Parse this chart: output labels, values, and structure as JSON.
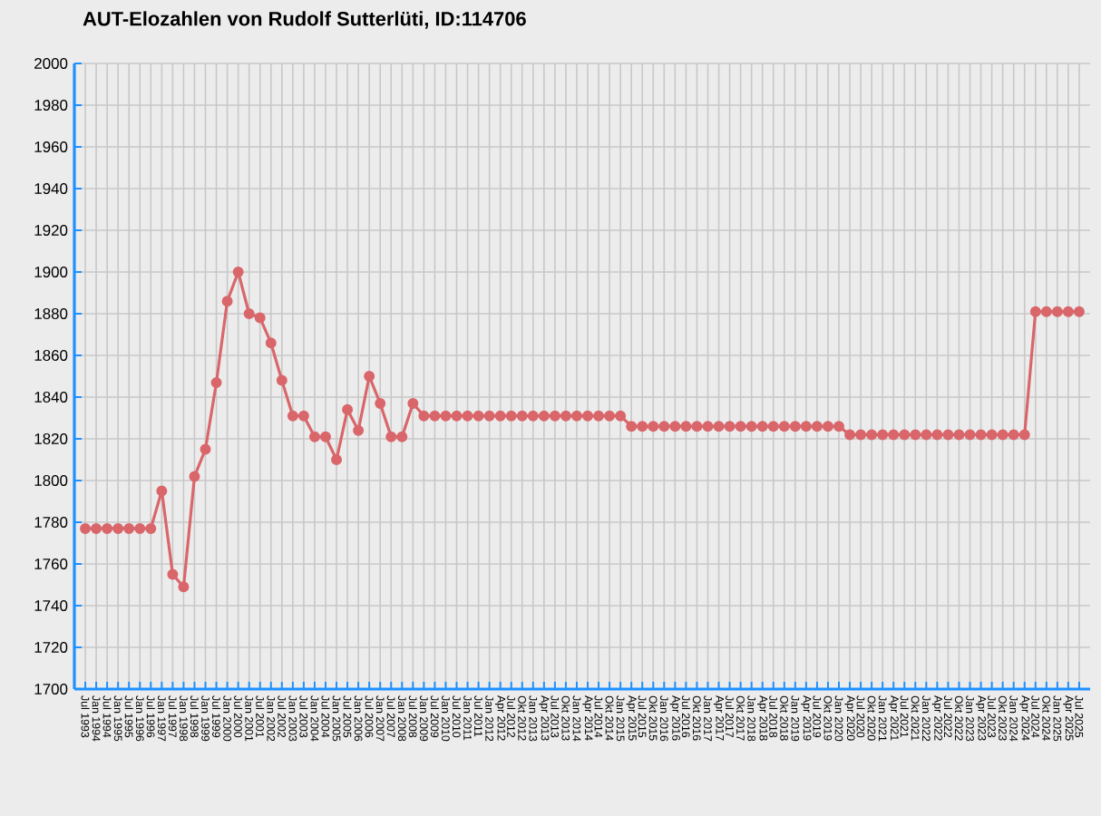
{
  "chart_data": {
    "type": "line",
    "title": "AUT-Elozahlen von Rudolf Sutterlüti, ID:114706",
    "categories": [
      "Jul 1993",
      "Jan 1994",
      "Jul 1994",
      "Jan 1995",
      "Jul 1995",
      "Jan 1996",
      "Jul 1996",
      "Jan 1997",
      "Jul 1997",
      "Jan 1998",
      "Jul 1998",
      "Jan 1999",
      "Jul 1999",
      "Jan 2000",
      "Jul 2000",
      "Jan 2001",
      "Jul 2001",
      "Jan 2002",
      "Jul 2002",
      "Jan 2003",
      "Jul 2003",
      "Jan 2004",
      "Jul 2004",
      "Jan 2005",
      "Jul 2005",
      "Jan 2006",
      "Jul 2006",
      "Jan 2007",
      "Jul 2007",
      "Jan 2008",
      "Jul 2008",
      "Jan 2009",
      "Jul 2009",
      "Jan 2010",
      "Jul 2010",
      "Jan 2011",
      "Jul 2011",
      "Jan 2012",
      "Apr 2012",
      "Jul 2012",
      "Okt 2012",
      "Jan 2013",
      "Apr 2013",
      "Jul 2013",
      "Okt 2013",
      "Jan 2014",
      "Apr 2014",
      "Jul 2014",
      "Okt 2014",
      "Jan 2015",
      "Apr 2015",
      "Jul 2015",
      "Okt 2015",
      "Jan 2016",
      "Apr 2016",
      "Jul 2016",
      "Okt 2016",
      "Jan 2017",
      "Apr 2017",
      "Jul 2017",
      "Okt 2017",
      "Jan 2018",
      "Apr 2018",
      "Jul 2018",
      "Okt 2018",
      "Jan 2019",
      "Apr 2019",
      "Jul 2019",
      "Okt 2019",
      "Jan 2020",
      "Apr 2020",
      "Jul 2020",
      "Okt 2020",
      "Jan 2021",
      "Apr 2021",
      "Jul 2021",
      "Okt 2021",
      "Jan 2022",
      "Apr 2022",
      "Jul 2022",
      "Okt 2022",
      "Jan 2023",
      "Apr 2023",
      "Jul 2023",
      "Okt 2023",
      "Jan 2024",
      "Apr 2024",
      "Jul 2024",
      "Okt 2024",
      "Jan 2025",
      "Apr 2025",
      "Jul 2025"
    ],
    "values": [
      1777,
      1777,
      1777,
      1777,
      1777,
      1777,
      1777,
      1795,
      1755,
      1749,
      1802,
      1815,
      1847,
      1886,
      1900,
      1880,
      1878,
      1866,
      1848,
      1831,
      1831,
      1821,
      1821,
      1810,
      1834,
      1824,
      1850,
      1837,
      1821,
      1821,
      1837,
      1831,
      1831,
      1831,
      1831,
      1831,
      1831,
      1831,
      1831,
      1831,
      1831,
      1831,
      1831,
      1831,
      1831,
      1831,
      1831,
      1831,
      1831,
      1831,
      1826,
      1826,
      1826,
      1826,
      1826,
      1826,
      1826,
      1826,
      1826,
      1826,
      1826,
      1826,
      1826,
      1826,
      1826,
      1826,
      1826,
      1826,
      1826,
      1826,
      1822,
      1822,
      1822,
      1822,
      1822,
      1822,
      1822,
      1822,
      1822,
      1822,
      1822,
      1822,
      1822,
      1822,
      1822,
      1822,
      1822,
      1881,
      1881,
      1881,
      1881,
      1881
    ],
    "color": "#d9666a",
    "ylim": [
      1700,
      2000
    ],
    "yticks": [
      1700,
      1720,
      1740,
      1760,
      1780,
      1800,
      1820,
      1840,
      1860,
      1880,
      1900,
      1920,
      1940,
      1960,
      1980,
      2000
    ],
    "grid": true,
    "marker": "circle",
    "line_style": "solid"
  }
}
